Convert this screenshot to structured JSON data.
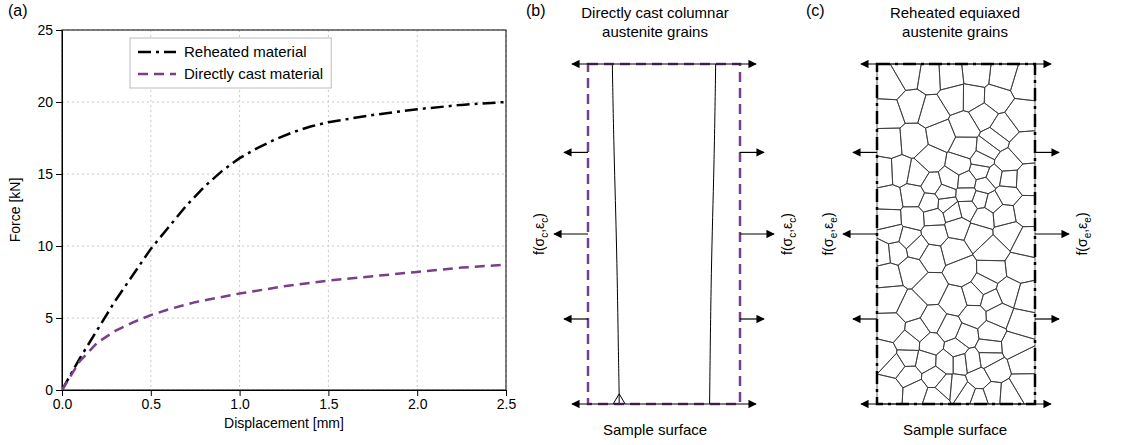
{
  "panel_labels": [
    "(a)",
    "(b)",
    "(c)"
  ],
  "chart_data": {
    "type": "line",
    "x_label": "Displacement [mm]",
    "y_label": "Force [kN]",
    "xlim": [
      0,
      2.5
    ],
    "ylim": [
      0,
      25
    ],
    "xticks": [
      {
        "value": 0,
        "label": "0.0"
      },
      {
        "value": 0.5,
        "label": "0.5"
      },
      {
        "value": 1,
        "label": "1.0"
      },
      {
        "value": 1.5,
        "label": "1.5"
      },
      {
        "value": 2,
        "label": "2.0"
      },
      {
        "value": 2.5,
        "label": "2.5"
      }
    ],
    "yticks": [
      0,
      5,
      10,
      15,
      20,
      25
    ],
    "grid": true,
    "legend": "upper left",
    "series": [
      {
        "name": "Reheated material",
        "color": "#000000",
        "line_style": "dashdot",
        "x": [
          0,
          0.1,
          0.2,
          0.3,
          0.4,
          0.5,
          0.6,
          0.7,
          0.8,
          0.9,
          1.0,
          1.1,
          1.2,
          1.3,
          1.4,
          1.5,
          1.75,
          2.0,
          2.25,
          2.5
        ],
        "values": [
          0,
          2.2,
          4.2,
          6.2,
          8.0,
          9.8,
          11.3,
          12.8,
          14.1,
          15.2,
          16.1,
          16.8,
          17.4,
          17.9,
          18.3,
          18.6,
          19.1,
          19.5,
          19.8,
          20.0
        ]
      },
      {
        "name": "Directly cast material",
        "color": "#7a3e8a",
        "line_style": "dashed",
        "x": [
          0,
          0.1,
          0.2,
          0.3,
          0.4,
          0.5,
          0.6,
          0.75,
          1.0,
          1.25,
          1.5,
          1.75,
          2.0,
          2.25,
          2.5
        ],
        "values": [
          0,
          2.0,
          3.3,
          4.1,
          4.7,
          5.2,
          5.6,
          6.1,
          6.7,
          7.2,
          7.6,
          7.9,
          8.2,
          8.5,
          8.7
        ]
      }
    ]
  },
  "diagrams": [
    {
      "title_lines": [
        "Directly cast columnar",
        "austenite grains"
      ],
      "side_label": [
        {
          "text": "f(σ"
        },
        {
          "text": "c",
          "sub": true
        },
        {
          "text": ",ε"
        },
        {
          "text": "c",
          "sub": true
        },
        {
          "text": ")"
        }
      ],
      "bottom_label": "Sample surface",
      "color": "#7a3e8a",
      "line_style": "dashed"
    },
    {
      "title_lines": [
        "Reheated equiaxed",
        "austenite grains"
      ],
      "side_label": [
        {
          "text": "f(σ"
        },
        {
          "text": "e",
          "sub": true
        },
        {
          "text": ",ε"
        },
        {
          "text": "e",
          "sub": true
        },
        {
          "text": ")"
        }
      ],
      "bottom_label": "Sample surface",
      "color": "#000000",
      "line_style": "dashdot"
    }
  ]
}
